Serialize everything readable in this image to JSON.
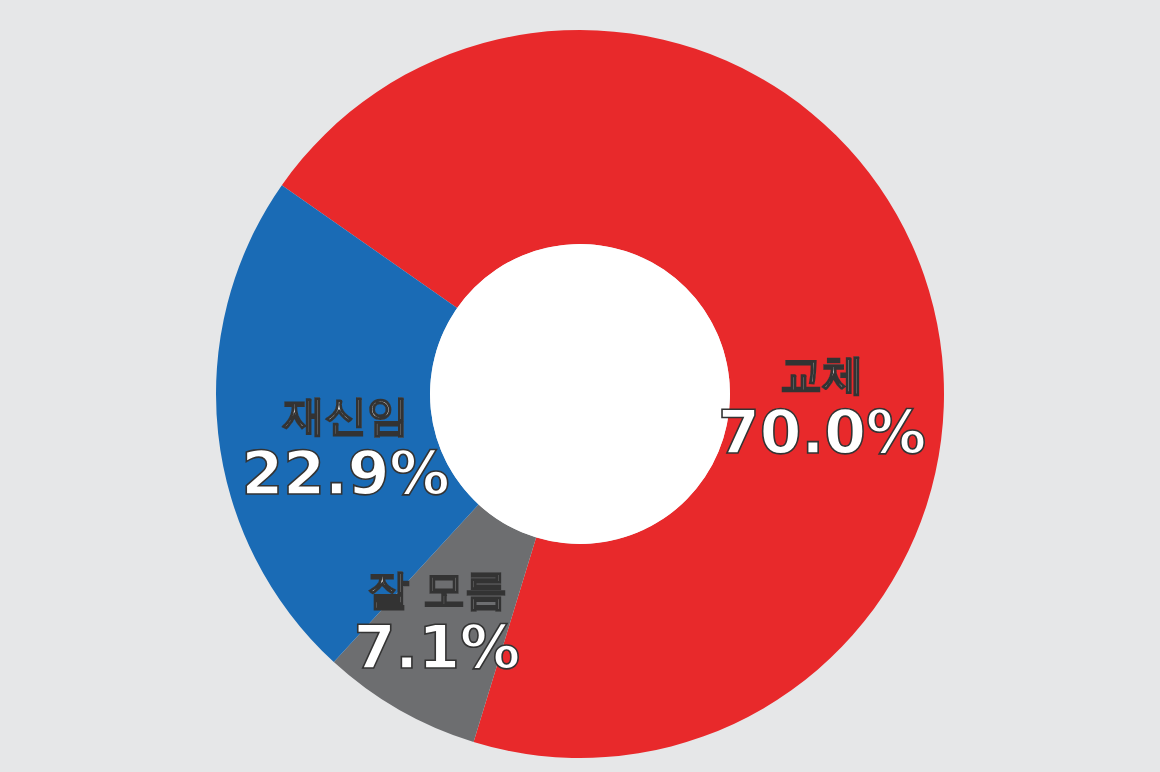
{
  "chart_data": {
    "type": "donut",
    "categories": [
      "교체",
      "잘 모름",
      "재신임"
    ],
    "values": [
      70.0,
      7.1,
      22.9
    ],
    "colors": [
      "#e8292b",
      "#6d6e70",
      "#1a6bb5"
    ],
    "value_labels": [
      "70.0%",
      "7.1%",
      "22.9%"
    ]
  }
}
